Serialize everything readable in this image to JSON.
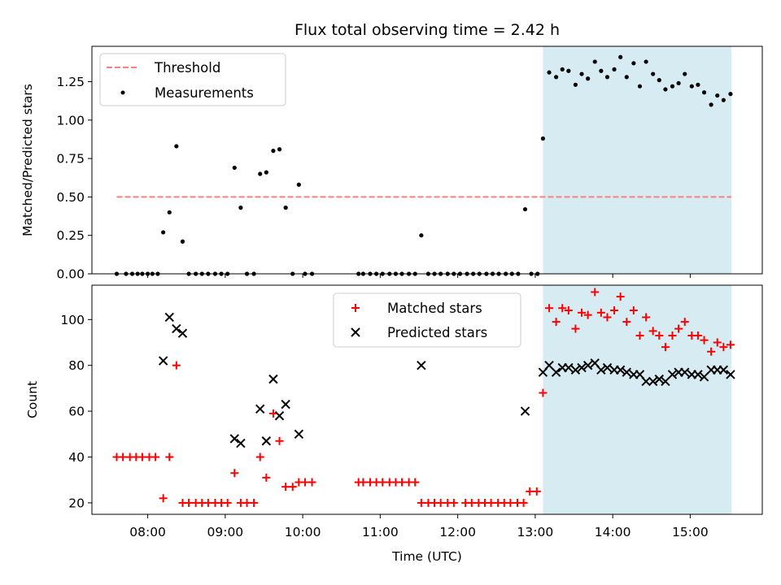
{
  "chart_data": [
    {
      "type": "scatter",
      "panel": "top",
      "title": "Flux total observing time = 2.42 h",
      "xlabel": "",
      "ylabel": "Matched/Predicted stars",
      "xlim": [
        7.28,
        15.93
      ],
      "ylim": [
        0,
        1.48
      ],
      "yticks": [
        "0.00",
        "0.25",
        "0.50",
        "0.75",
        "1.00",
        "1.25"
      ],
      "shaded_region": {
        "x": [
          13.1,
          15.53
        ],
        "color": "#add8e6"
      },
      "legend": {
        "position": "top-left",
        "entries": [
          "Threshold",
          "Measurements"
        ]
      },
      "series": [
        {
          "name": "Threshold",
          "style": "dashed-line",
          "color": "#ff7f7f",
          "x": [
            7.6,
            15.53
          ],
          "y": [
            0.5,
            0.5
          ]
        },
        {
          "name": "Measurements",
          "style": "dot",
          "color": "#000000",
          "x": [
            7.6,
            7.72,
            7.8,
            7.87,
            7.93,
            8.0,
            8.06,
            8.13,
            8.2,
            8.28,
            8.37,
            8.45,
            8.53,
            8.62,
            8.7,
            8.78,
            8.87,
            8.95,
            9.03,
            9.12,
            9.2,
            9.28,
            9.37,
            9.45,
            9.53,
            9.62,
            9.7,
            9.78,
            9.87,
            9.95,
            10.03,
            10.12,
            10.72,
            10.78,
            10.87,
            10.95,
            11.03,
            11.12,
            11.2,
            11.28,
            11.37,
            11.45,
            11.53,
            11.62,
            11.7,
            11.78,
            11.87,
            11.95,
            12.03,
            12.12,
            12.2,
            12.28,
            12.37,
            12.45,
            12.53,
            12.62,
            12.7,
            12.78,
            12.87,
            12.95,
            13.03,
            13.1,
            13.18,
            13.27,
            13.35,
            13.43,
            13.52,
            13.6,
            13.68,
            13.77,
            13.85,
            13.93,
            14.02,
            14.1,
            14.18,
            14.27,
            14.35,
            14.43,
            14.52,
            14.6,
            14.68,
            14.77,
            14.85,
            14.93,
            15.02,
            15.1,
            15.18,
            15.27,
            15.35,
            15.43,
            15.52
          ],
          "y": [
            0,
            0,
            0,
            0,
            0,
            0,
            0,
            0,
            0.27,
            0.4,
            0.83,
            0.21,
            0,
            0,
            0,
            0,
            0,
            0,
            0,
            0.69,
            0.43,
            0,
            0,
            0.65,
            0.66,
            0.8,
            0.81,
            0.43,
            0,
            0.58,
            0,
            0,
            0,
            0,
            0,
            0,
            0,
            0,
            0,
            0,
            0,
            0,
            0.25,
            0,
            0,
            0,
            0,
            0,
            0,
            0,
            0,
            0,
            0,
            0,
            0,
            0,
            0,
            0,
            0.42,
            0,
            0,
            0.88,
            1.31,
            1.28,
            1.33,
            1.32,
            1.23,
            1.3,
            1.27,
            1.38,
            1.32,
            1.28,
            1.33,
            1.41,
            1.28,
            1.37,
            1.22,
            1.38,
            1.3,
            1.26,
            1.2,
            1.22,
            1.24,
            1.3,
            1.22,
            1.23,
            1.18,
            1.1,
            1.16,
            1.13,
            1.17
          ]
        }
      ]
    },
    {
      "type": "scatter",
      "panel": "bottom",
      "title": "",
      "xlabel": "Time (UTC)",
      "ylabel": "Count",
      "xlim": [
        7.28,
        15.93
      ],
      "ylim": [
        15,
        115
      ],
      "xticks": [
        "08:00",
        "09:00",
        "10:00",
        "11:00",
        "12:00",
        "13:00",
        "14:00",
        "15:00"
      ],
      "xtick_values": [
        8,
        9,
        10,
        11,
        12,
        13,
        14,
        15
      ],
      "yticks": [
        "20",
        "40",
        "60",
        "80",
        "100"
      ],
      "shaded_region": {
        "x": [
          13.1,
          15.53
        ],
        "color": "#add8e6"
      },
      "legend": {
        "position": "top-center",
        "entries": [
          "Matched stars",
          "Predicted stars"
        ]
      },
      "series": [
        {
          "name": "Matched stars",
          "marker": "plus",
          "color": "#ff0000",
          "x": [
            7.6,
            7.68,
            7.77,
            7.85,
            7.93,
            8.02,
            8.1,
            8.2,
            8.28,
            8.37,
            8.45,
            8.53,
            8.62,
            8.7,
            8.78,
            8.87,
            8.95,
            9.03,
            9.12,
            9.2,
            9.28,
            9.37,
            9.45,
            9.53,
            9.62,
            9.7,
            9.78,
            9.87,
            9.95,
            10.03,
            10.12,
            10.72,
            10.78,
            10.87,
            10.95,
            11.03,
            11.12,
            11.2,
            11.28,
            11.37,
            11.45,
            11.53,
            11.62,
            11.7,
            11.78,
            11.87,
            11.95,
            12.1,
            12.18,
            12.27,
            12.35,
            12.43,
            12.52,
            12.6,
            12.68,
            12.77,
            12.85,
            12.93,
            13.02,
            13.1,
            13.18,
            13.27,
            13.35,
            13.43,
            13.52,
            13.6,
            13.68,
            13.77,
            13.85,
            13.93,
            14.02,
            14.1,
            14.18,
            14.27,
            14.35,
            14.43,
            14.52,
            14.6,
            14.68,
            14.77,
            14.85,
            14.93,
            15.02,
            15.1,
            15.18,
            15.27,
            15.35,
            15.43,
            15.52
          ],
          "y": [
            40,
            40,
            40,
            40,
            40,
            40,
            40,
            22,
            40,
            80,
            20,
            20,
            20,
            20,
            20,
            20,
            20,
            20,
            33,
            20,
            20,
            20,
            40,
            31,
            59,
            47,
            27,
            27,
            29,
            29,
            29,
            29,
            29,
            29,
            29,
            29,
            29,
            29,
            29,
            29,
            29,
            20,
            20,
            20,
            20,
            20,
            20,
            20,
            20,
            20,
            20,
            20,
            20,
            20,
            20,
            20,
            20,
            25,
            25,
            68,
            105,
            99,
            105,
            104,
            96,
            103,
            102,
            112,
            103,
            101,
            104,
            110,
            99,
            104,
            93,
            101,
            95,
            93,
            88,
            93,
            96,
            99,
            93,
            93,
            91,
            86,
            90,
            88,
            89
          ]
        },
        {
          "name": "Predicted stars",
          "marker": "x",
          "color": "#000000",
          "x": [
            8.2,
            8.28,
            8.37,
            8.45,
            9.12,
            9.2,
            9.45,
            9.53,
            9.62,
            9.7,
            9.78,
            9.95,
            11.53,
            12.87,
            13.1,
            13.18,
            13.27,
            13.35,
            13.43,
            13.52,
            13.6,
            13.68,
            13.77,
            13.85,
            13.93,
            14.02,
            14.1,
            14.18,
            14.27,
            14.35,
            14.43,
            14.52,
            14.6,
            14.68,
            14.77,
            14.85,
            14.93,
            15.02,
            15.1,
            15.18,
            15.27,
            15.35,
            15.43,
            15.52
          ],
          "y": [
            82,
            101,
            96,
            94,
            48,
            46,
            61,
            47,
            74,
            58,
            63,
            50,
            80,
            60,
            77,
            80,
            77,
            79,
            79,
            78,
            79,
            80,
            81,
            78,
            79,
            78,
            78,
            77,
            76,
            76,
            73,
            73,
            74,
            73,
            76,
            77,
            77,
            76,
            76,
            75,
            78,
            78,
            78,
            76
          ]
        }
      ]
    }
  ]
}
